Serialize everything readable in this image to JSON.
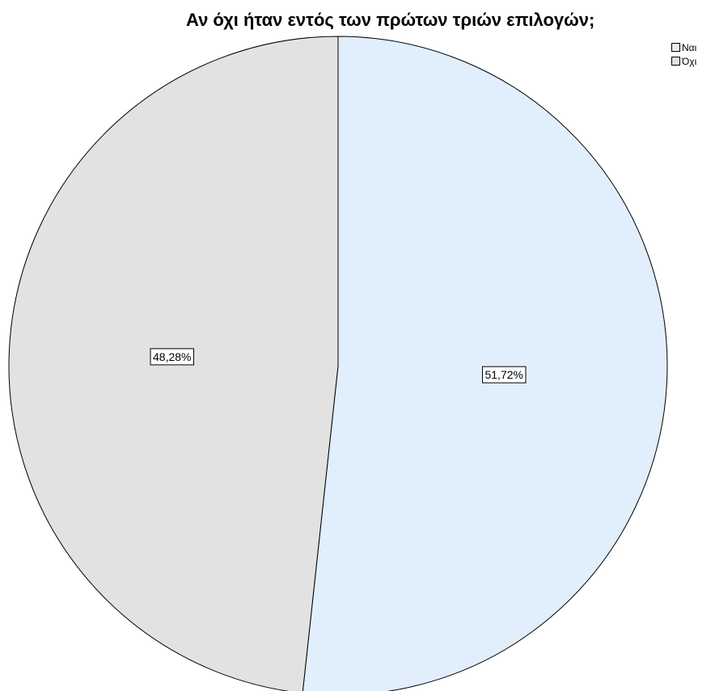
{
  "chart_data": {
    "type": "pie",
    "title": "Αν όχι ήταν εντός των πρώτων τριών επιλογών;",
    "categories": [
      "Ναι",
      "Όχι"
    ],
    "values": [
      51.72,
      48.28
    ],
    "data_labels": [
      "51,72%",
      "48,28%"
    ],
    "colors": [
      "#e1eefb",
      "#e2e2e2"
    ],
    "legend_position": "top-right",
    "start_angle": "top (12 o'clock), clockwise"
  }
}
